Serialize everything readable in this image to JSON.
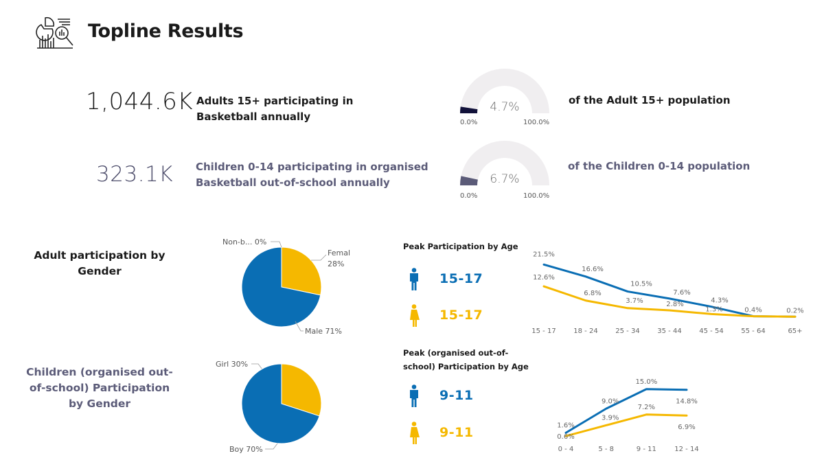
{
  "page": {
    "title": "Topline Results"
  },
  "kpis": [
    {
      "value": "1,044.6K",
      "description": "Adults 15+ participating in Basketball annually",
      "gauge_value_label": "4.7%",
      "gauge_fraction": 0.047,
      "gauge_min": "0.0%",
      "gauge_max": "100.0%",
      "population_label": "of the Adult 15+ population",
      "gauge_color": "#12123a"
    },
    {
      "value": "323.1K",
      "description": "Children 0-14 participating in organised Basketball out-of-school annually",
      "gauge_value_label": "6.7%",
      "gauge_fraction": 0.067,
      "gauge_min": "0.0%",
      "gauge_max": "100.0%",
      "population_label": "of the Children 0-14 population",
      "gauge_color": "#5b5b78"
    }
  ],
  "adult_section": {
    "title_line1": "Adult participation by",
    "title_line2": "Gender",
    "peak_label": "Peak Participation by Age",
    "peak_male": "15-17",
    "peak_female": "15-17"
  },
  "children_section": {
    "title_line1": "Children (organised out-",
    "title_line2": "of-school) Participation",
    "title_line3": "by Gender",
    "peak_label_line1": "Peak (organised out-of-",
    "peak_label_line2": "school) Participation by Age",
    "peak_male": "9-11",
    "peak_female": "9-11"
  },
  "colors": {
    "male": "#0a6eb4",
    "female": "#f5b800",
    "gauge_track": "#f0eef0"
  },
  "icons": {
    "logo": "analytics-report-icon",
    "male": "male-person-icon",
    "female": "female-person-icon"
  },
  "chart_data": [
    {
      "type": "pie",
      "slices": [
        {
          "label": "Female",
          "value": 28,
          "display": "28%",
          "color": "#f5b800"
        },
        {
          "label": "Male",
          "value": 71,
          "display": "Male 71%",
          "color": "#0a6eb4"
        },
        {
          "label": "Non-b...",
          "value": 0,
          "display": "Non-b... 0%",
          "color": "#5b5b78"
        }
      ]
    },
    {
      "type": "pie",
      "slices": [
        {
          "label": "Girl",
          "value": 30,
          "display": "Girl 30%",
          "color": "#f5b800"
        },
        {
          "label": "Boy",
          "value": 70,
          "display": "Boy 70%",
          "color": "#0a6eb4"
        }
      ]
    },
    {
      "type": "line",
      "categories": [
        "15 - 17",
        "18 - 24",
        "25 - 34",
        "35 - 44",
        "45 - 54",
        "55 - 64",
        "65+"
      ],
      "series": [
        {
          "values": [
            21.5,
            16.6,
            10.5,
            7.6,
            4.3,
            0.4,
            0.2
          ],
          "labels": [
            "21.5%",
            "16.6%",
            "10.5%",
            "7.6%",
            "4.3%",
            "0.4%",
            "0.2%"
          ],
          "color": "#0a6eb4"
        },
        {
          "values": [
            12.6,
            6.8,
            3.7,
            2.8,
            1.3,
            0.4,
            0.2
          ],
          "labels": [
            "12.6%",
            "6.8%",
            "3.7%",
            "2.8%",
            "1.3%",
            "",
            ""
          ],
          "color": "#f5b800"
        }
      ],
      "ylim": [
        0,
        23
      ]
    },
    {
      "type": "line",
      "categories": [
        "0 - 4",
        "5 - 8",
        "9 - 11",
        "12 - 14"
      ],
      "series": [
        {
          "values": [
            1.6,
            9.0,
            15.0,
            14.8
          ],
          "labels": [
            "1.6%",
            "9.0%",
            "15.0%",
            "14.8%"
          ],
          "color": "#0a6eb4"
        },
        {
          "values": [
            0.6,
            3.9,
            7.2,
            6.9
          ],
          "labels": [
            "0.6%",
            "3.9%",
            "7.2%",
            "6.9%"
          ],
          "color": "#f5b800"
        }
      ],
      "ylim": [
        0,
        16
      ]
    }
  ]
}
